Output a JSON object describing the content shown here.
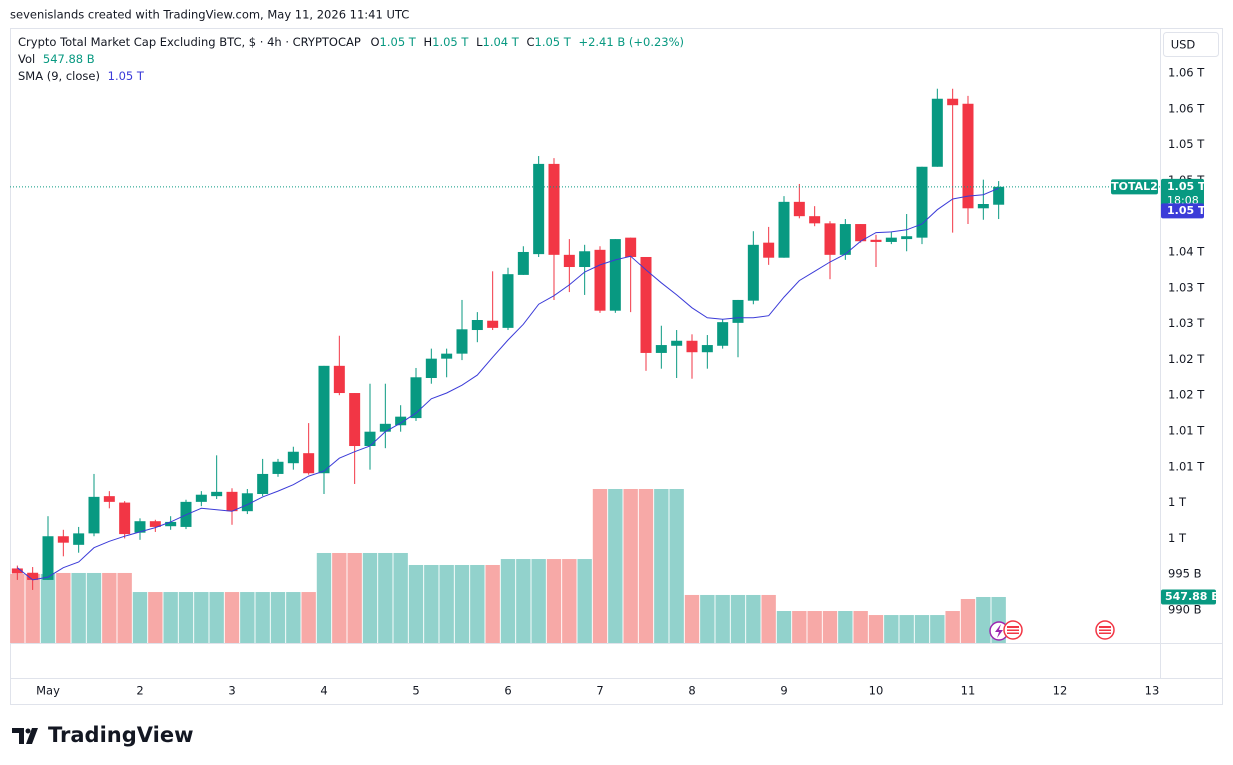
{
  "header": {
    "credit": "sevenislands created with TradingView.com, May 11, 2026 11:41 UTC"
  },
  "footer": {
    "brand": "TradingView"
  },
  "chart_data": {
    "type": "candlestick",
    "title": "Crypto Total Market Cap Excluding BTC, $ · 4h · CRYPTOCAP",
    "legend": {
      "open_label": "O",
      "open": "1.05 T",
      "high_label": "H",
      "high": "1.05 T",
      "low_label": "L",
      "low": "1.04 T",
      "close_label": "C",
      "close": "1.05 T",
      "change": "+2.41 B (+0.23%)",
      "volume_label": "Vol",
      "volume": "547.88 B"
    },
    "currency": "USD",
    "symbol": "TOTAL2",
    "last_price_label": "1.05 T",
    "countdown": "18:08",
    "up_color": "#089981",
    "down_color": "#f23645",
    "volume_up_color": "#92d2cc",
    "volume_down_color": "#f7a9a7",
    "x": [
      0.6667,
      0.8333,
      1,
      1.1667,
      1.3333,
      1.5,
      1.6667,
      1.8333,
      2,
      2.1667,
      2.3333,
      2.5,
      2.6667,
      2.8333,
      3,
      3.1667,
      3.3333,
      3.5,
      3.6667,
      3.8333,
      4,
      4.1667,
      4.3333,
      4.5,
      4.6667,
      4.8333,
      5,
      5.1667,
      5.3333,
      5.5,
      5.6667,
      5.8333,
      6,
      6.1667,
      6.3333,
      6.5,
      6.6667,
      6.8333,
      7,
      7.1667,
      7.3333,
      7.5,
      7.6667,
      7.8333,
      8,
      8.1667,
      8.3333,
      8.5,
      8.6667,
      8.8333,
      9,
      9.1667,
      9.3333,
      9.5,
      9.6667,
      9.8333,
      10,
      10.1667,
      10.3333,
      10.5,
      10.6667,
      10.8333,
      11,
      11.1667,
      11.3333
    ],
    "open": [
      995.8,
      995.2,
      994.2,
      1000.3,
      999.1,
      1000.7,
      1005.9,
      1005,
      1000.8,
      1002.4,
      1001.7,
      1001.6,
      1005.1,
      1005.9,
      1006.5,
      1003.8,
      1006.2,
      1009,
      1010.5,
      1011.9,
      1009.1,
      1024.1,
      1020.3,
      1012.9,
      1014.9,
      1015.8,
      1016.8,
      1022.4,
      1025.1,
      1025.8,
      1029.1,
      1030.4,
      1029.4,
      1036.8,
      1039.7,
      1052.3,
      1039.6,
      1037.9,
      1040.3,
      1031.8,
      1042,
      1039.3,
      1025.9,
      1026.9,
      1027.6,
      1026,
      1026.9,
      1030.1,
      1033.2,
      1041.3,
      1039.2,
      1047,
      1045,
      1044,
      1039.6,
      1043.9,
      1041.7,
      1041.4,
      1041.8,
      1042,
      1051.9,
      1061.4,
      1060.7,
      1046.1,
      1046.6
    ],
    "high": [
      996.2,
      996,
      1003.1,
      1001.2,
      1001.6,
      1009,
      1006.6,
      1005.2,
      1002.8,
      1002.6,
      1003.1,
      1005.4,
      1006.6,
      1011.6,
      1007,
      1006.9,
      1011.1,
      1011.1,
      1012.8,
      1016.1,
      1024.1,
      1028.3,
      1020.3,
      1021.6,
      1021.6,
      1018.6,
      1023.8,
      1026.5,
      1026.5,
      1033.3,
      1031.6,
      1037.3,
      1037.8,
      1040.8,
      1053.4,
      1053.1,
      1041.8,
      1041,
      1040.8,
      1041.8,
      1042,
      1039.3,
      1029.7,
      1029.1,
      1028.5,
      1028.4,
      1030.6,
      1033.3,
      1042.9,
      1043.5,
      1047.8,
      1049.5,
      1046.4,
      1044.3,
      1044.6,
      1043.9,
      1042.4,
      1042.8,
      1045.3,
      1051.9,
      1062.8,
      1062.8,
      1061.8,
      1050.1,
      1049.9
    ],
    "low": [
      994.2,
      992.8,
      994.2,
      997.5,
      998,
      1000.3,
      1004.2,
      1000,
      999.8,
      1000.9,
      1001.2,
      1001.3,
      1004.5,
      1005.5,
      1001.9,
      1003.4,
      1005.9,
      1008.6,
      1009.6,
      1008.9,
      1006.2,
      1020,
      1007.6,
      1009.6,
      1012.6,
      1014.9,
      1016.4,
      1021.6,
      1022.5,
      1024.9,
      1027.4,
      1029.1,
      1029.1,
      1036.8,
      1039.3,
      1033.3,
      1034.4,
      1034,
      1031.5,
      1031.5,
      1031.6,
      1023.4,
      1023.7,
      1022.4,
      1022.3,
      1023.7,
      1026.5,
      1025.3,
      1032.7,
      1038.2,
      1039.2,
      1044.7,
      1043.6,
      1036.2,
      1038.9,
      1041.3,
      1037.9,
      1041.1,
      1040.1,
      1041.1,
      1051.9,
      1042.7,
      1043.9,
      1044.5,
      1044.6
    ],
    "close": [
      995.1,
      994.2,
      1000.3,
      999.4,
      1000.7,
      1005.8,
      1005.1,
      1000.6,
      1002.4,
      1001.6,
      1002.3,
      1005.1,
      1006.1,
      1006.5,
      1003.8,
      1006.3,
      1009,
      1010.7,
      1012.1,
      1009.1,
      1024.1,
      1020.3,
      1012.9,
      1014.9,
      1016,
      1017,
      1022.5,
      1025.1,
      1025.8,
      1029.2,
      1030.5,
      1029.4,
      1036.9,
      1040,
      1052.3,
      1039.6,
      1037.9,
      1040.1,
      1031.8,
      1041.8,
      1039.3,
      1025.9,
      1027,
      1027.6,
      1026,
      1027,
      1030.2,
      1033.3,
      1041,
      1039.2,
      1047,
      1045,
      1044,
      1039.6,
      1043.9,
      1041.5,
      1041.4,
      1042,
      1042.2,
      1051.9,
      1061.4,
      1060.5,
      1046.1,
      1046.7,
      1049.1
    ],
    "volume": [
      822,
      822,
      822,
      834,
      834,
      834,
      834,
      834,
      607,
      607,
      607,
      607,
      607,
      607,
      607,
      607,
      607,
      607,
      607,
      607,
      1072,
      1072,
      1072,
      1072,
      1072,
      1072,
      929,
      929,
      929,
      929,
      929,
      929,
      1000,
      1000,
      1000,
      1000,
      1000,
      1000,
      1834,
      1834,
      1834,
      1834,
      1834,
      1834,
      572,
      572,
      572,
      572,
      572,
      572,
      381,
      381,
      381,
      381,
      381,
      381,
      333,
      333,
      333,
      333,
      333,
      381,
      524,
      547.88,
      547.88
    ],
    "volume_value_label": "547.88 B",
    "sma": {
      "name": "SMA (9, close)",
      "value_label": "1.05 T",
      "color": "#3b3bd8",
      "values": [
        995.9,
        994.2,
        994.6,
        995.9,
        996.7,
        998.7,
        999.6,
        1000.3,
        1000.9,
        1001.5,
        1002.3,
        1003.3,
        1004.2,
        1004,
        1003.8,
        1004.7,
        1005.8,
        1006.6,
        1007.5,
        1008.7,
        1009.4,
        1011.2,
        1012.1,
        1012.9,
        1014.9,
        1016.1,
        1017.5,
        1019.5,
        1020.3,
        1021.4,
        1022.8,
        1025.3,
        1027.7,
        1029.9,
        1032.7,
        1033.9,
        1035.4,
        1037.2,
        1038.2,
        1038.9,
        1039.4,
        1037.5,
        1035.7,
        1034,
        1032.2,
        1030.8,
        1030.6,
        1030.8,
        1030.8,
        1031.1,
        1033.7,
        1036,
        1037.3,
        1038.6,
        1039.7,
        1041.5,
        1042.7,
        1042.8,
        1043.1,
        1043.9,
        1045.9,
        1047.4,
        1047.8,
        1048,
        1048.9
      ]
    },
    "xlim": [
      0.587,
      13.087
    ],
    "xticks": [
      {
        "value": 1,
        "label": "May"
      },
      2,
      3,
      4,
      5,
      6,
      7,
      8,
      9,
      10,
      11,
      12,
      13
    ],
    "ylim": [
      985.39,
      1071.28
    ],
    "yticks": [
      {
        "value": 990,
        "label": "990 B"
      },
      {
        "value": 995,
        "label": "995 B"
      },
      {
        "value": 1000,
        "label": "1 T"
      },
      {
        "value": 1005,
        "label": "1 T"
      },
      {
        "value": 1010,
        "label": "1.01 T"
      },
      {
        "value": 1015,
        "label": "1.01 T"
      },
      {
        "value": 1020,
        "label": "1.02 T"
      },
      {
        "value": 1025,
        "label": "1.02 T"
      },
      {
        "value": 1030,
        "label": "1.03 T"
      },
      {
        "value": 1035,
        "label": "1.03 T"
      },
      {
        "value": 1040,
        "label": "1.04 T"
      },
      {
        "value": 1050,
        "label": "1.05 T"
      },
      {
        "value": 1055,
        "label": "1.05 T"
      },
      {
        "value": 1060,
        "label": "1.06 T"
      },
      {
        "value": 1065,
        "label": "1.06 T"
      }
    ],
    "grid": false
  }
}
